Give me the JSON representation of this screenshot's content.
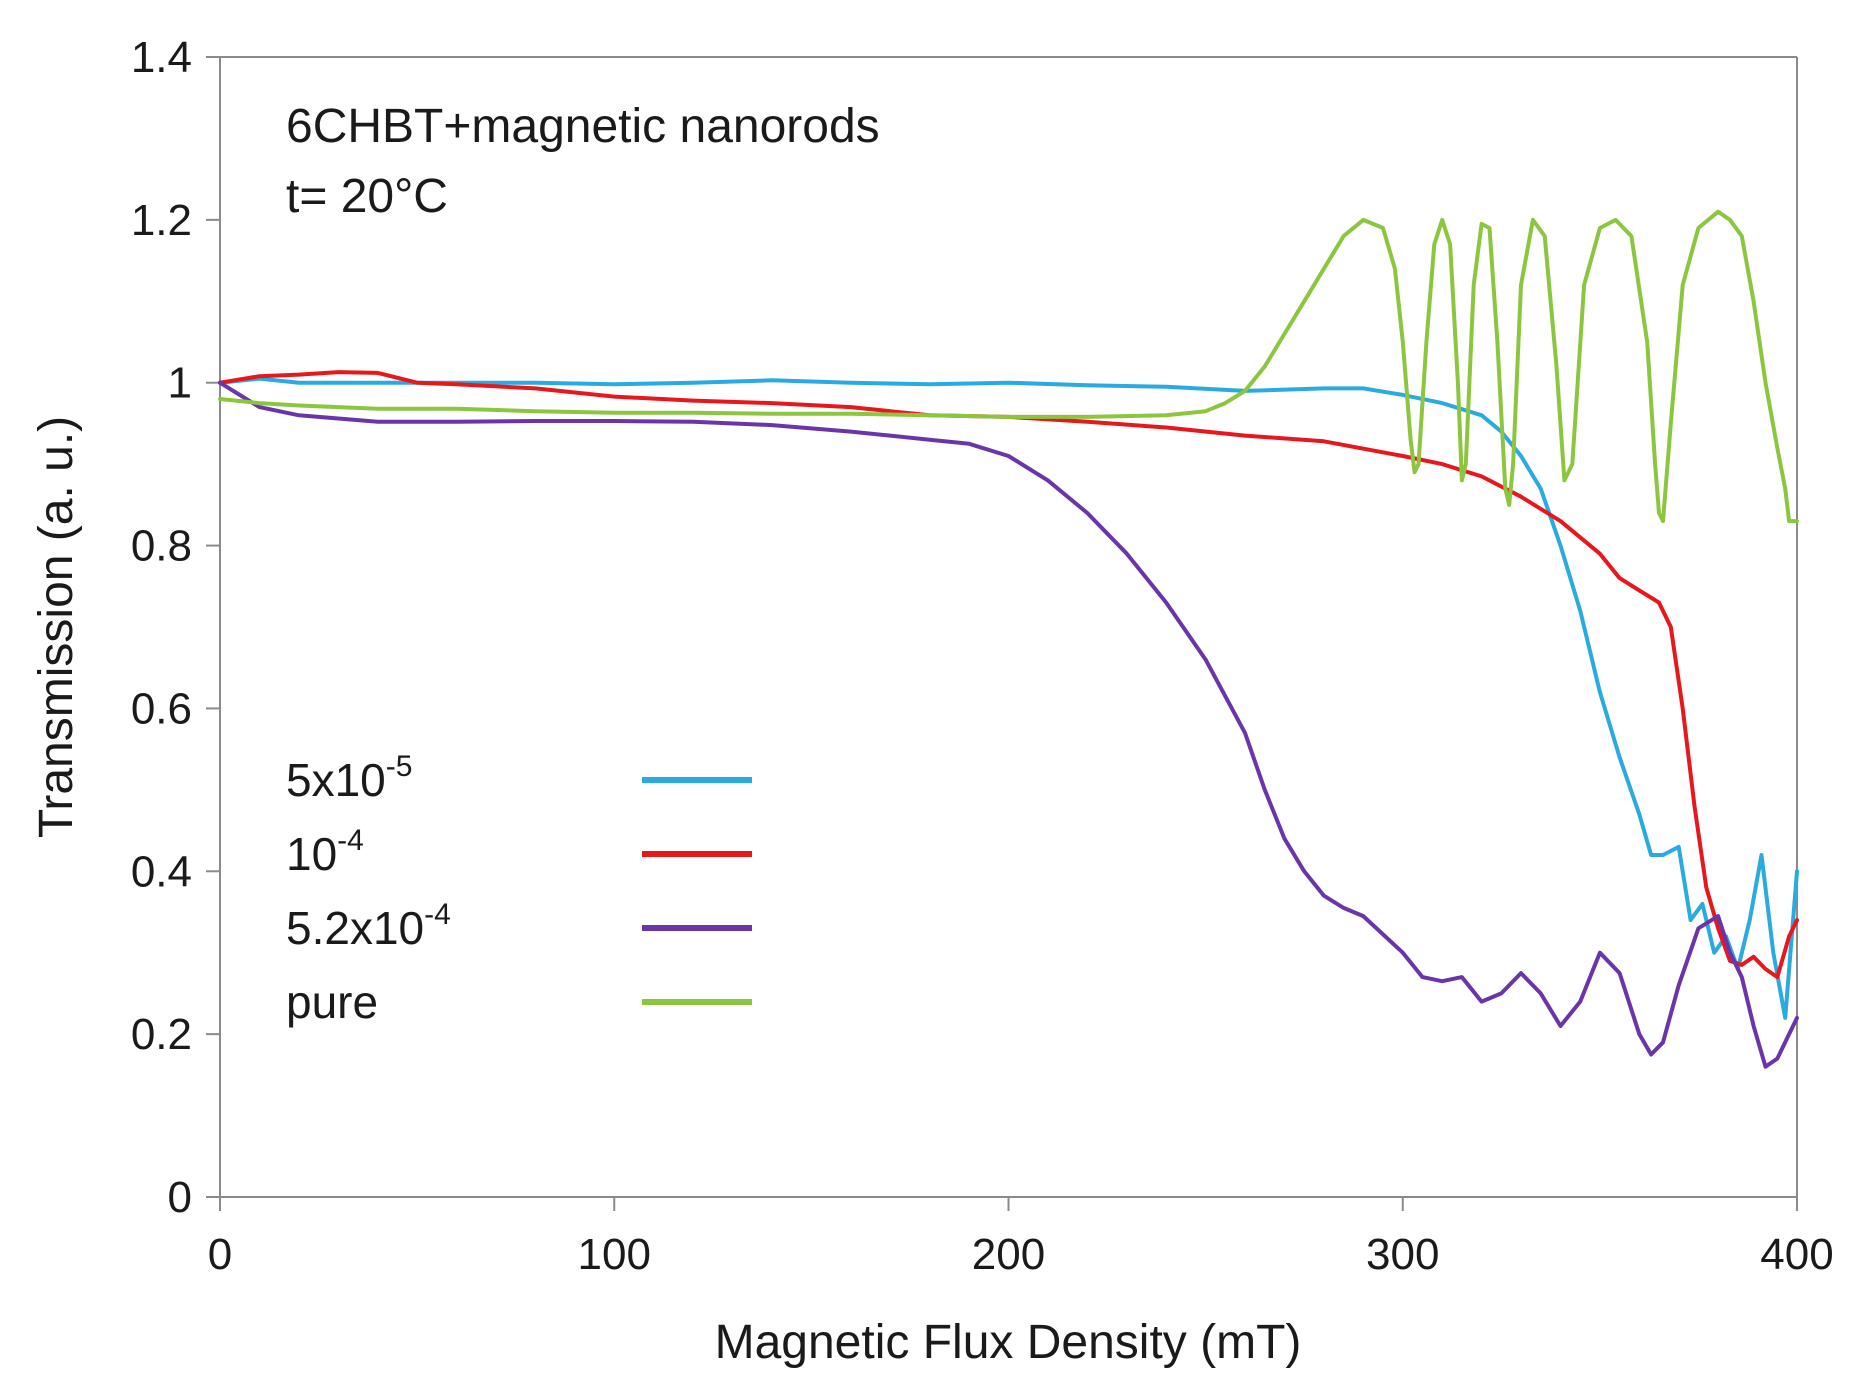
{
  "chart_data": {
    "type": "line",
    "title": "",
    "annotations": [
      "6CHBT+magnetic nanorods",
      "t= 20°C"
    ],
    "xlabel": "Magnetic Flux Density (mT)",
    "ylabel": "Transmission (a. u.)",
    "xlim": [
      0,
      400
    ],
    "ylim": [
      0,
      1.4
    ],
    "x_ticks": [
      0,
      100,
      200,
      300,
      400
    ],
    "x_tick_labels": [
      "0",
      "100",
      "200",
      "300",
      "400"
    ],
    "y_ticks": [
      0,
      0.2,
      0.4,
      0.6,
      0.8,
      1,
      1.2,
      1.4
    ],
    "y_tick_labels": [
      "0",
      "0.2",
      "0.4",
      "0.6",
      "0.8",
      "1",
      "1.2",
      "1.4"
    ],
    "grid": false,
    "legend_position": "middle-left",
    "series": [
      {
        "name": "5x10-5",
        "label_base": "5x10",
        "label_sup": "-5",
        "color": "#29abe2",
        "x": [
          0,
          10,
          20,
          40,
          60,
          80,
          100,
          120,
          140,
          160,
          180,
          200,
          220,
          240,
          260,
          280,
          290,
          300,
          310,
          320,
          325,
          330,
          335,
          340,
          345,
          350,
          355,
          360,
          363,
          366,
          370,
          373,
          376,
          379,
          382,
          385,
          388,
          391,
          394,
          397,
          400
        ],
        "values": [
          1.0,
          1.005,
          1.0,
          1.0,
          1.0,
          1.0,
          0.998,
          1.0,
          1.003,
          1.0,
          0.998,
          1.0,
          0.997,
          0.995,
          0.99,
          0.993,
          0.993,
          0.985,
          0.975,
          0.96,
          0.94,
          0.91,
          0.87,
          0.8,
          0.72,
          0.62,
          0.54,
          0.47,
          0.42,
          0.42,
          0.43,
          0.34,
          0.36,
          0.3,
          0.32,
          0.28,
          0.34,
          0.42,
          0.3,
          0.22,
          0.4
        ]
      },
      {
        "name": "10-4",
        "label_base": "10",
        "label_sup": "-4",
        "color": "#e8171b",
        "x": [
          0,
          10,
          20,
          30,
          40,
          50,
          60,
          80,
          100,
          120,
          140,
          160,
          180,
          200,
          220,
          240,
          260,
          280,
          300,
          310,
          320,
          330,
          340,
          350,
          355,
          360,
          365,
          368,
          371,
          374,
          377,
          380,
          383,
          386,
          389,
          392,
          395,
          398,
          400
        ],
        "values": [
          1.0,
          1.008,
          1.01,
          1.013,
          1.012,
          1.0,
          0.998,
          0.993,
          0.983,
          0.978,
          0.975,
          0.97,
          0.96,
          0.958,
          0.952,
          0.945,
          0.935,
          0.928,
          0.91,
          0.9,
          0.885,
          0.86,
          0.83,
          0.79,
          0.76,
          0.745,
          0.73,
          0.7,
          0.6,
          0.48,
          0.38,
          0.33,
          0.29,
          0.285,
          0.295,
          0.28,
          0.27,
          0.32,
          0.34
        ]
      },
      {
        "name": "5.2x10-4",
        "label_base": "5.2x10",
        "label_sup": "-4",
        "color": "#6a35a8",
        "x": [
          0,
          10,
          20,
          40,
          60,
          80,
          100,
          120,
          140,
          160,
          180,
          190,
          200,
          210,
          220,
          230,
          240,
          250,
          260,
          265,
          270,
          275,
          280,
          285,
          290,
          300,
          305,
          310,
          315,
          320,
          325,
          330,
          335,
          340,
          345,
          350,
          355,
          360,
          363,
          366,
          370,
          375,
          380,
          383,
          386,
          389,
          392,
          395,
          398,
          400
        ],
        "values": [
          1.0,
          0.97,
          0.96,
          0.952,
          0.952,
          0.953,
          0.953,
          0.952,
          0.948,
          0.94,
          0.93,
          0.925,
          0.91,
          0.88,
          0.84,
          0.79,
          0.73,
          0.66,
          0.57,
          0.5,
          0.44,
          0.4,
          0.37,
          0.355,
          0.345,
          0.3,
          0.27,
          0.265,
          0.27,
          0.24,
          0.25,
          0.275,
          0.25,
          0.21,
          0.24,
          0.3,
          0.275,
          0.2,
          0.175,
          0.19,
          0.26,
          0.33,
          0.345,
          0.3,
          0.27,
          0.21,
          0.16,
          0.17,
          0.2,
          0.22
        ]
      },
      {
        "name": "pure",
        "label_base": "pure",
        "label_sup": "",
        "color": "#8cc63f",
        "x": [
          0,
          10,
          20,
          40,
          60,
          80,
          100,
          120,
          140,
          160,
          180,
          200,
          220,
          240,
          250,
          255,
          260,
          265,
          270,
          275,
          280,
          285,
          290,
          295,
          298,
          300,
          302,
          303,
          304,
          306,
          308,
          310,
          312,
          314,
          315,
          316,
          318,
          320,
          322,
          324,
          326,
          327,
          328,
          330,
          333,
          336,
          339,
          341,
          343,
          346,
          350,
          354,
          358,
          362,
          364,
          365,
          366,
          368,
          371,
          375,
          380,
          383,
          386,
          389,
          392,
          395,
          397,
          398,
          400
        ],
        "values": [
          0.98,
          0.975,
          0.972,
          0.968,
          0.968,
          0.965,
          0.963,
          0.963,
          0.962,
          0.962,
          0.96,
          0.958,
          0.958,
          0.96,
          0.965,
          0.975,
          0.99,
          1.02,
          1.06,
          1.1,
          1.14,
          1.18,
          1.2,
          1.19,
          1.14,
          1.05,
          0.93,
          0.89,
          0.9,
          1.05,
          1.17,
          1.2,
          1.17,
          1.0,
          0.88,
          0.9,
          1.12,
          1.195,
          1.19,
          1.05,
          0.87,
          0.85,
          0.9,
          1.12,
          1.2,
          1.18,
          1.02,
          0.88,
          0.9,
          1.12,
          1.19,
          1.2,
          1.18,
          1.05,
          0.9,
          0.84,
          0.83,
          0.95,
          1.12,
          1.19,
          1.21,
          1.2,
          1.18,
          1.1,
          1.0,
          0.92,
          0.87,
          0.83,
          0.83
        ]
      }
    ]
  }
}
